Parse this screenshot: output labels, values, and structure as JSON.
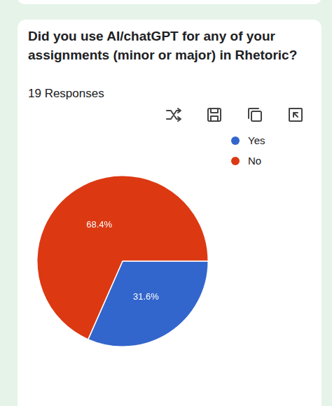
{
  "chart_data": {
    "type": "pie",
    "title": "Did you use AI/chatGPT for any of your assignments (minor or major) in Rhetoric?",
    "subtitle": "19 Responses",
    "categories": [
      "Yes",
      "No"
    ],
    "values": [
      31.6,
      68.4
    ],
    "value_labels": [
      "31.6%",
      "68.4%"
    ],
    "colors": [
      "#3366cc",
      "#dc3912"
    ],
    "legend": "right",
    "data_labels": true
  }
}
